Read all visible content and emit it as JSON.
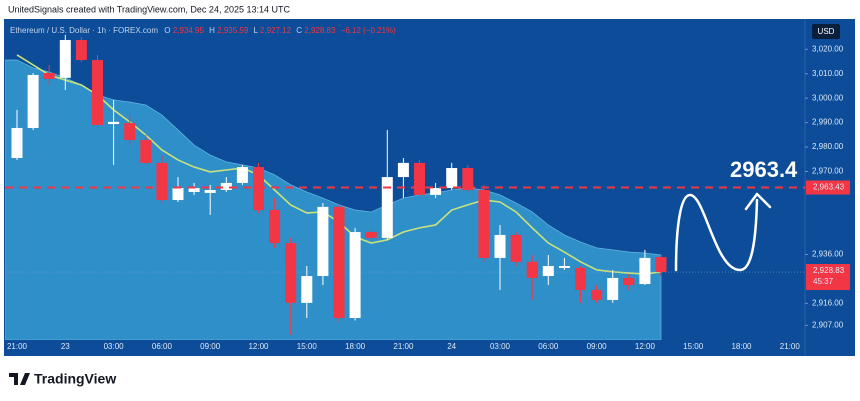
{
  "header": {
    "credit": "UnitedSignals created with TradingView.com, Dec 24, 2025 13:14 UTC",
    "currency": "USD",
    "footer": "TradingView"
  },
  "chart_data": {
    "type": "candlestick",
    "symbol": "Ethereum / U.S. Dollar · 1h · FOREX.com",
    "ohlc_legend": [
      {
        "label": "O",
        "value": "2,934.95"
      },
      {
        "label": "H",
        "value": "2,935.59"
      },
      {
        "label": "L",
        "value": "2,927.12"
      },
      {
        "label": "C",
        "value": "2,928.83"
      }
    ],
    "change": "−6.12 (−0.21%)",
    "categories": [
      "21:00",
      null,
      null,
      "23",
      null,
      null,
      "03:00",
      null,
      null,
      "06:00",
      null,
      null,
      "09:00",
      null,
      null,
      "12:00",
      null,
      null,
      "15:00",
      null,
      null,
      "18:00",
      null,
      null,
      "21:00",
      null,
      null,
      "24",
      null,
      null,
      "03:00",
      null,
      null,
      "06:00",
      null,
      null,
      "09:00",
      null,
      null,
      "12:00",
      null,
      null,
      "15:00",
      null,
      null,
      "18:00",
      null,
      null,
      "21:00"
    ],
    "color_up": "#ffffff",
    "color_down": "#f23645",
    "open": [
      2975.5,
      2987.8,
      3010.3,
      3008.3,
      3023.8,
      3015.6,
      2989.4,
      2989.8,
      2982.9,
      2973.5,
      2958.3,
      2961.6,
      2961.2,
      2962.4,
      2965.3,
      2971.8,
      2954.2,
      2940.7,
      2916.2,
      2927.2,
      2955.5,
      2910.0,
      2945.2,
      2942.8,
      2967.7,
      2973.5,
      2960.4,
      2963.2,
      2971.4,
      2962.4,
      2934.6,
      2944.0,
      2933.0,
      2927.2,
      2930.5,
      2930.5,
      2921.5,
      2917.4,
      2926.4,
      2923.9,
      2934.95,
      null,
      null,
      null,
      null,
      null,
      null,
      null,
      null
    ],
    "high": [
      2995.2,
      3010.3,
      3013.6,
      3025.9,
      3025.0,
      3017.7,
      2999.3,
      2993.1,
      2984.9,
      2976.7,
      2967.7,
      2965.3,
      2964.5,
      2967.7,
      2972.7,
      2973.5,
      2959.1,
      2942.8,
      2931.3,
      2957.1,
      2956.3,
      2946.9,
      2946.0,
      2987.0,
      2975.5,
      2974.7,
      2965.3,
      2973.5,
      2972.7,
      2964.5,
      2948.1,
      2945.2,
      2935.8,
      2935.8,
      2934.6,
      2931.3,
      2923.5,
      2929.7,
      2928.0,
      2937.9,
      2935.59,
      null,
      null,
      null,
      null,
      null,
      null,
      null,
      null
    ],
    "low": [
      2974.7,
      2987.0,
      3005.4,
      3003.3,
      3014.8,
      2987.8,
      2972.7,
      2980.8,
      2972.7,
      2957.1,
      2957.5,
      2960.4,
      2952.2,
      2961.6,
      2964.5,
      2953.0,
      2938.7,
      2903.1,
      2910.0,
      2923.5,
      2908.4,
      2909.0,
      2942.0,
      2942.0,
      2959.1,
      2959.1,
      2959.1,
      2962.4,
      2961.6,
      2933.0,
      2921.5,
      2931.3,
      2917.4,
      2923.5,
      2929.7,
      2916.2,
      2916.2,
      2916.2,
      2921.5,
      2923.5,
      2927.12,
      null,
      null,
      null,
      null,
      null,
      null,
      null,
      null
    ],
    "close": [
      2987.8,
      3009.5,
      3007.9,
      3023.8,
      3015.6,
      2989.0,
      2990.3,
      2982.9,
      2973.5,
      2958.3,
      2963.2,
      2963.2,
      2962.4,
      2965.3,
      2971.8,
      2954.2,
      2940.7,
      2916.2,
      2927.2,
      2955.5,
      2910.0,
      2945.2,
      2942.8,
      2967.7,
      2973.5,
      2960.4,
      2963.2,
      2971.4,
      2962.4,
      2934.6,
      2944.0,
      2933.0,
      2926.4,
      2931.3,
      2931.3,
      2921.5,
      2917.4,
      2926.4,
      2923.5,
      2934.6,
      2928.83,
      null,
      null,
      null,
      null,
      null,
      null,
      null,
      null
    ],
    "band": {
      "color": "#2f8fc8",
      "values": [
        3015.6,
        3012.4,
        3010.7,
        3008.3,
        3005.4,
        3001.3,
        2999.3,
        2998.4,
        2997.2,
        2993.1,
        2987.0,
        2980.8,
        2976.7,
        2973.9,
        2972.7,
        2971.4,
        2968.6,
        2964.5,
        2961.6,
        2959.1,
        2956.3,
        2954.2,
        2953.4,
        2956.3,
        2959.1,
        2960.4,
        2961.2,
        2962.4,
        2963.2,
        2962.4,
        2960.4,
        2957.1,
        2953.4,
        2948.1,
        2944.0,
        2941.1,
        2938.7,
        2937.9,
        2937.0,
        2936.6,
        2935.8,
        null,
        null,
        null,
        null,
        null,
        null,
        null,
        null
      ]
    },
    "moving_average": {
      "color": "#c9e37a",
      "values": [
        3017.7,
        3013.6,
        3009.5,
        3007.4,
        3005.4,
        3001.3,
        2995.2,
        2990.3,
        2984.9,
        2978.8,
        2974.7,
        2971.8,
        2969.8,
        2970.6,
        2971.4,
        2968.6,
        2962.4,
        2956.3,
        2953.0,
        2953.4,
        2949.3,
        2943.2,
        2940.7,
        2942.0,
        2945.2,
        2946.9,
        2948.1,
        2954.2,
        2956.3,
        2958.3,
        2957.5,
        2953.4,
        2946.9,
        2940.7,
        2937.0,
        2933.0,
        2929.7,
        2928.9,
        2928.4,
        2928.0,
        2928.9,
        null,
        null,
        null,
        null,
        null,
        null,
        null,
        null
      ]
    },
    "ylim": [
      2901,
      3032
    ],
    "yticks": [
      {
        "value": 3020,
        "label": "3,020.00"
      },
      {
        "value": 3010,
        "label": "3,010.00"
      },
      {
        "value": 3000,
        "label": "3,000.00"
      },
      {
        "value": 2990,
        "label": "2,990.00"
      },
      {
        "value": 2980,
        "label": "2,980.00"
      },
      {
        "value": 2970,
        "label": "2,970.00"
      },
      {
        "value": 2936,
        "label": "2,936.00"
      },
      {
        "value": 2916,
        "label": "2,916.00"
      },
      {
        "value": 2907,
        "label": "2,907.00"
      }
    ],
    "grid": false,
    "price_line": {
      "value": 2963.43,
      "label": "2,963.43",
      "color": "#f23645"
    },
    "last_price": {
      "value": 2928.83,
      "label": "2,928.83",
      "countdown": "45:37",
      "color": "#f23645"
    },
    "annotation": "2963.4"
  }
}
